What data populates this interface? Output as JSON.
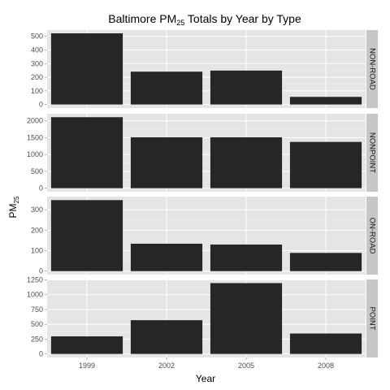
{
  "chart_data": {
    "type": "bar",
    "title_main": "Baltimore PM",
    "title_sub": "25",
    "title_rest": " Totals by Year by Type",
    "xlabel": "Year",
    "ylabel_main": "PM",
    "ylabel_sub": "25",
    "categories": [
      "1999",
      "2002",
      "2005",
      "2008"
    ],
    "bar_color": "#262626",
    "panel_bg": "#e5e5e5",
    "strip_bg": "#c7c7c7",
    "grid": true,
    "panels": [
      {
        "name": "NON-ROAD",
        "values": [
          522,
          241,
          249,
          56
        ],
        "ylim": [
          -26,
          546
        ],
        "yticks": [
          0,
          100,
          200,
          300,
          400,
          500
        ]
      },
      {
        "name": "NONPOINT",
        "values": [
          2108,
          1510,
          1510,
          1374
        ],
        "ylim": [
          -105,
          2210
        ],
        "yticks": [
          0,
          500,
          1000,
          1500,
          2000
        ]
      },
      {
        "name": "ON-ROAD",
        "values": [
          347,
          134,
          130,
          89
        ],
        "ylim": [
          -17,
          364
        ],
        "yticks": [
          0,
          100,
          200,
          300
        ]
      },
      {
        "name": "POINT",
        "values": [
          297,
          570,
          1196,
          345
        ],
        "ylim": [
          -60,
          1257
        ],
        "yticks": [
          0,
          250,
          500,
          750,
          1000,
          1250
        ]
      }
    ]
  }
}
